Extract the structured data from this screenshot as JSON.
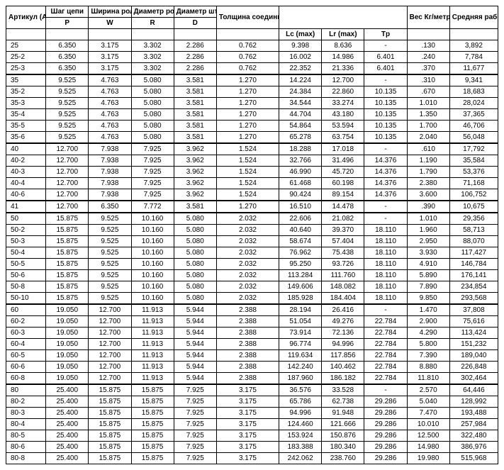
{
  "headers": {
    "article": "Артикул (ANSI)",
    "pitch": "Шаг цепи",
    "roller_width": "Ширина ролика",
    "roller_dia": "Диаметр ролика",
    "pin_dia": "Диаметр штифта",
    "plate_thick": "Толщина соединительной пластины",
    "weight": "Вес Кг/метр",
    "avg_load": "Средняя рабочая нагрузка в kH",
    "sub_p": "P",
    "sub_w": "W",
    "sub_r": "R",
    "sub_d": "D",
    "sub_lc": "Lc (max)",
    "sub_lr": "Lr (max)",
    "sub_tp": "Tp"
  },
  "groups": [
    {
      "rows": [
        [
          "25",
          "6.350",
          "3.175",
          "3.302",
          "2.286",
          "0.762",
          "9.398",
          "8.636",
          "-",
          ".130",
          "3,892"
        ],
        [
          "25-2",
          "6.350",
          "3.175",
          "3.302",
          "2.286",
          "0.762",
          "16.002",
          "14.986",
          "6.401",
          ".240",
          "7,784"
        ],
        [
          "25-3",
          "6.350",
          "3.175",
          "3.302",
          "2.286",
          "0.762",
          "22.352",
          "21.336",
          "6.401",
          ".370",
          "11,677"
        ]
      ]
    },
    {
      "rows": [
        [
          "35",
          "9.525",
          "4.763",
          "5.080",
          "3.581",
          "1.270",
          "14.224",
          "12.700",
          "-",
          ".310",
          "9,341"
        ],
        [
          "35-2",
          "9.525",
          "4.763",
          "5.080",
          "3.581",
          "1.270",
          "24.384",
          "22.860",
          "10.135",
          ".670",
          "18,683"
        ],
        [
          "35-3",
          "9.525",
          "4.763",
          "5.080",
          "3.581",
          "1.270",
          "34.544",
          "33.274",
          "10.135",
          "1.010",
          "28,024"
        ],
        [
          "35-4",
          "9.525",
          "4.763",
          "5.080",
          "3.581",
          "1.270",
          "44.704",
          "43.180",
          "10.135",
          "1.350",
          "37,365"
        ],
        [
          "35-5",
          "9.525",
          "4.763",
          "5.080",
          "3.581",
          "1.270",
          "54.864",
          "53.594",
          "10.135",
          "1.700",
          "46,706"
        ],
        [
          "35-6",
          "9.525",
          "4.763",
          "5.080",
          "3.581",
          "1.270",
          "65.278",
          "63.754",
          "10.135",
          "2.040",
          "56,048"
        ]
      ]
    },
    {
      "rows": [
        [
          "40",
          "12.700",
          "7.938",
          "7.925",
          "3.962",
          "1.524",
          "18.288",
          "17.018",
          "-",
          ".610",
          "17,792"
        ],
        [
          "40-2",
          "12.700",
          "7.938",
          "7.925",
          "3.962",
          "1.524",
          "32.766",
          "31.496",
          "14.376",
          "1.190",
          "35,584"
        ],
        [
          "40-3",
          "12.700",
          "7.938",
          "7.925",
          "3.962",
          "1.524",
          "46.990",
          "45.720",
          "14.376",
          "1.790",
          "53,376"
        ],
        [
          "40-4",
          "12.700",
          "7.938",
          "7.925",
          "3.962",
          "1.524",
          "61.468",
          "60.198",
          "14.376",
          "2.380",
          "71,168"
        ],
        [
          "40-6",
          "12.700",
          "7.938",
          "7.925",
          "3.962",
          "1.524",
          "90.424",
          "89.154",
          "14.376",
          "3.600",
          "106,752"
        ]
      ]
    },
    {
      "rows": [
        [
          "41",
          "12.700",
          "6.350",
          "7.772",
          "3.581",
          "1.270",
          "16.510",
          "14.478",
          "-",
          ".390",
          "10,675"
        ]
      ]
    },
    {
      "rows": [
        [
          "50",
          "15.875",
          "9.525",
          "10.160",
          "5.080",
          "2.032",
          "22.606",
          "21.082",
          "-",
          "1.010",
          "29,356"
        ],
        [
          "50-2",
          "15.875",
          "9.525",
          "10.160",
          "5.080",
          "2.032",
          "40.640",
          "39.370",
          "18.110",
          "1.960",
          "58,713"
        ],
        [
          "50-3",
          "15.875",
          "9.525",
          "10.160",
          "5.080",
          "2.032",
          "58.674",
          "57.404",
          "18.110",
          "2.950",
          "88,070"
        ],
        [
          "50-4",
          "15.875",
          "9.525",
          "10.160",
          "5.080",
          "2.032",
          "76.962",
          "75.438",
          "18.110",
          "3.930",
          "117,427"
        ],
        [
          "50-5",
          "15.875",
          "9.525",
          "10.160",
          "5.080",
          "2.032",
          "95.250",
          "93.726",
          "18.110",
          "4.910",
          "146,784"
        ],
        [
          "50-6",
          "15.875",
          "9.525",
          "10.160",
          "5.080",
          "2.032",
          "113.284",
          "111.760",
          "18.110",
          "5.890",
          "176,141"
        ],
        [
          "50-8",
          "15.875",
          "9.525",
          "10.160",
          "5.080",
          "2.032",
          "149.606",
          "148.082",
          "18.110",
          "7.890",
          "234,854"
        ],
        [
          "50-10",
          "15.875",
          "9.525",
          "10.160",
          "5.080",
          "2.032",
          "185.928",
          "184.404",
          "18.110",
          "9.850",
          "293,568"
        ]
      ]
    },
    {
      "rows": [
        [
          "60",
          "19.050",
          "12.700",
          "11.913",
          "5.944",
          "2.388",
          "28.194",
          "26.416",
          "-",
          "1.470",
          "37,808"
        ],
        [
          "60-2",
          "19.050",
          "12.700",
          "11.913",
          "5.944",
          "2.388",
          "51.054",
          "49.276",
          "22.784",
          "2.900",
          "75,616"
        ],
        [
          "60-3",
          "19.050",
          "12.700",
          "11.913",
          "5.944",
          "2.388",
          "73.914",
          "72.136",
          "22.784",
          "4.290",
          "113,424"
        ],
        [
          "60-4",
          "19.050",
          "12.700",
          "11.913",
          "5.944",
          "2.388",
          "96.774",
          "94.996",
          "22.784",
          "5.800",
          "151,232"
        ],
        [
          "60-5",
          "19.050",
          "12.700",
          "11.913",
          "5.944",
          "2.388",
          "119.634",
          "117.856",
          "22.784",
          "7.390",
          "189,040"
        ],
        [
          "60-6",
          "19.050",
          "12.700",
          "11.913",
          "5.944",
          "2.388",
          "142.240",
          "140.462",
          "22.784",
          "8.880",
          "226,848"
        ],
        [
          "60-8",
          "19.050",
          "12.700",
          "11.913",
          "5.944",
          "2.388",
          "187.960",
          "186.182",
          "22.784",
          "11.810",
          "302,464"
        ]
      ]
    },
    {
      "rows": [
        [
          "80",
          "25.400",
          "15.875",
          "15.875",
          "7.925",
          "3.175",
          "36.576",
          "33.528",
          "-",
          "2.570",
          "64,446"
        ],
        [
          "80-2",
          "25.400",
          "15.875",
          "15.875",
          "7.925",
          "3.175",
          "65.786",
          "62.738",
          "29.286",
          "5.040",
          "128,992"
        ],
        [
          "80-3",
          "25.400",
          "15.875",
          "15.875",
          "7.925",
          "3.175",
          "94.996",
          "91.948",
          "29.286",
          "7.470",
          "193,488"
        ],
        [
          "80-4",
          "25.400",
          "15.875",
          "15.875",
          "7.925",
          "3.175",
          "124.460",
          "121.666",
          "29.286",
          "10.010",
          "257,984"
        ],
        [
          "80-5",
          "25.400",
          "15.875",
          "15.875",
          "7.925",
          "3.175",
          "153.924",
          "150.876",
          "29.286",
          "12.500",
          "322,480"
        ],
        [
          "80-6",
          "25.400",
          "15.875",
          "15.875",
          "7.925",
          "3.175",
          "183.388",
          "180.340",
          "29.286",
          "14.980",
          "386,976"
        ],
        [
          "80-8",
          "25.400",
          "15.875",
          "15.875",
          "7.925",
          "3.175",
          "242.062",
          "238.760",
          "29.286",
          "19.980",
          "515,968"
        ]
      ]
    }
  ]
}
